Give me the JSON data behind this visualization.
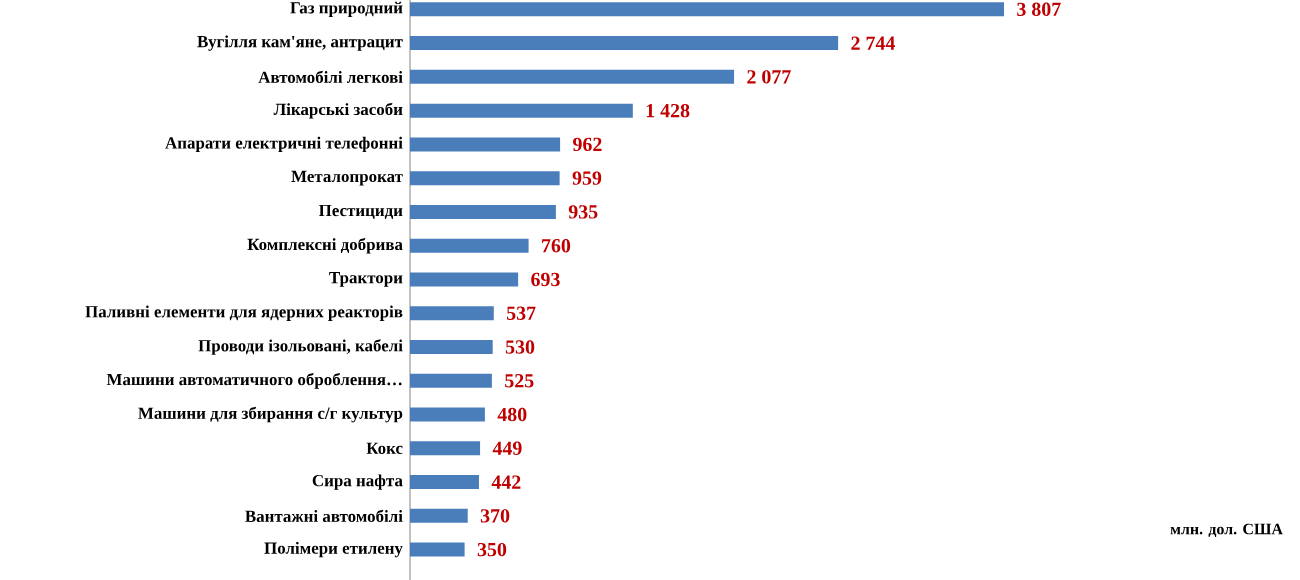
{
  "chart_data": {
    "type": "bar",
    "orientation": "horizontal",
    "categories": [
      "Газ природний",
      "Вугілля кам'яне, антрацит",
      "Автомобілі легкові",
      "Лікарські засоби",
      "Апарати електричні телефонні",
      "Металопрокат",
      "Пестициди",
      "Комплексні добрива",
      "Трактори",
      "Паливні елементи для ядерних реакторів",
      "Проводи ізольовані, кабелі",
      "Машини автоматичного оброблення…",
      "Машини для збирання с/г культур",
      "Кокс",
      "Сира нафта",
      "Вантажні автомобілі",
      "Полімери етилену"
    ],
    "values": [
      3807,
      2744,
      2077,
      1428,
      962,
      959,
      935,
      760,
      693,
      537,
      530,
      525,
      480,
      449,
      442,
      370,
      350
    ],
    "value_labels": [
      "3 807",
      "2 744",
      "2 077",
      "1 428",
      "962",
      "959",
      "935",
      "760",
      "693",
      "537",
      "530",
      "525",
      "480",
      "449",
      "442",
      "370",
      "350"
    ],
    "color": "#4a7ebb",
    "annotations": [
      "млн. дол. США"
    ]
  }
}
